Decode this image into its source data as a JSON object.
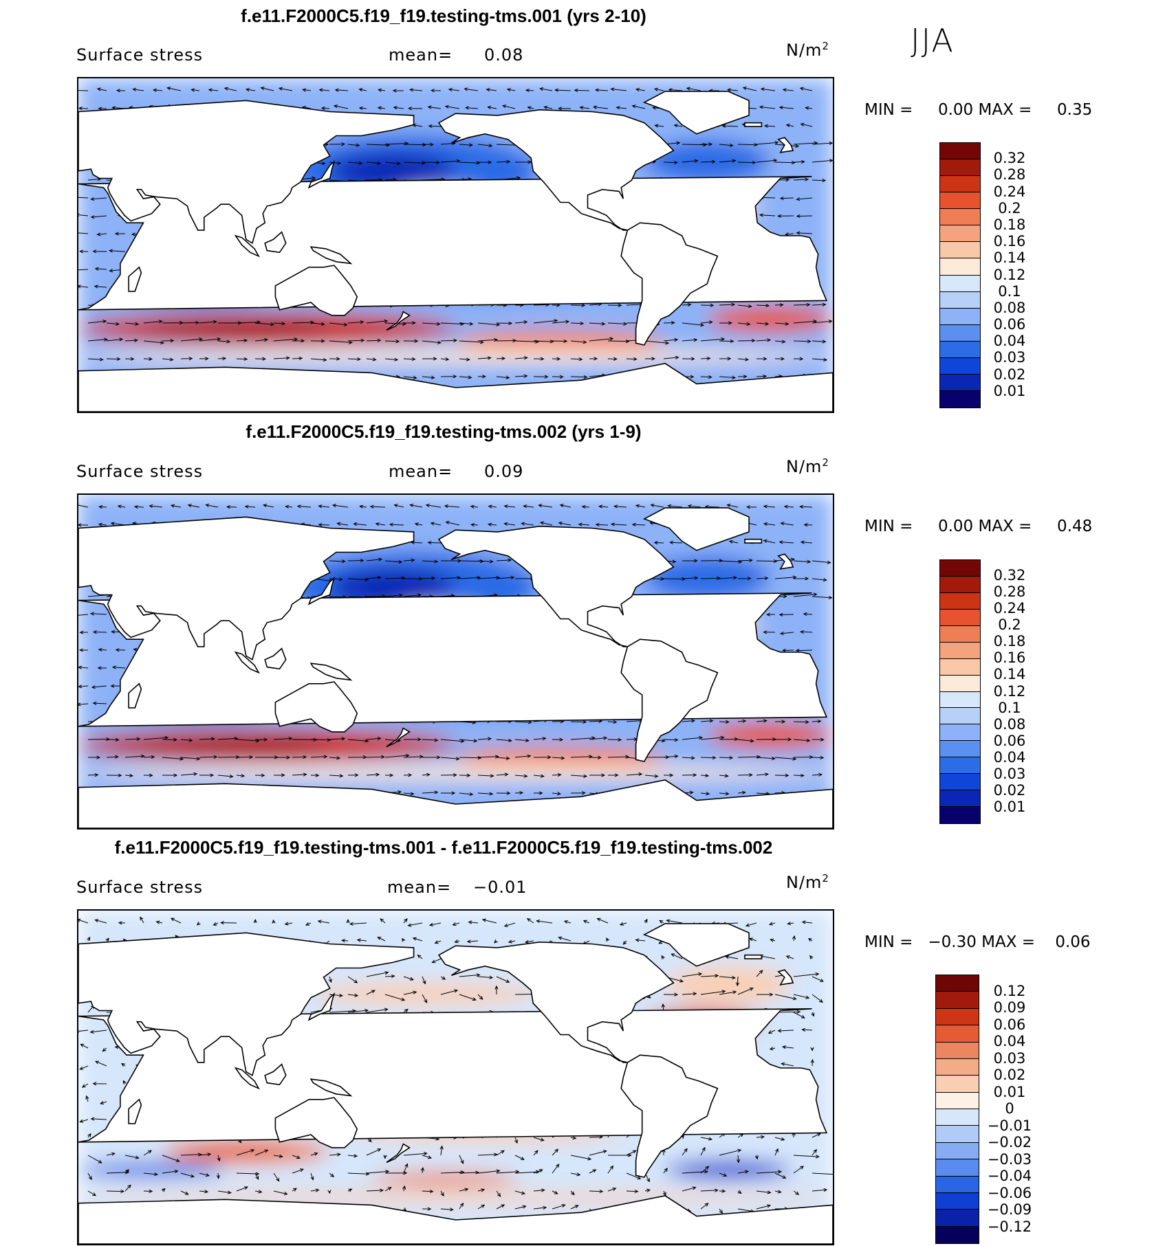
{
  "season": "JJA",
  "palette_abs": [
    "#08006e",
    "#0a26b5",
    "#1045d9",
    "#2c6ce6",
    "#5b8ff0",
    "#8db2f7",
    "#b7d0f8",
    "#d8e8fb",
    "#fdebd9",
    "#f8c8a8",
    "#f4a37e",
    "#ef7e55",
    "#e6532e",
    "#cc3415",
    "#a11b0d",
    "#730707"
  ],
  "palette_diff": [
    "#06005a",
    "#0a22a8",
    "#0f3fd3",
    "#2a66e3",
    "#5a8bee",
    "#88acf4",
    "#b1cbf7",
    "#d6e6fb",
    "#fdf0e4",
    "#f9cfb3",
    "#f3ab8a",
    "#ed8660",
    "#e45b34",
    "#cc3615",
    "#a21a0c",
    "#6e0606"
  ],
  "panels": [
    {
      "title": "f.e11.F2000C5.f19_f19.testing-tms.001 (yrs 2-10)",
      "variable": "Surface stress",
      "mean_label": "mean=",
      "mean_value": "0.08",
      "units": "N/m",
      "units_sup": "2",
      "min_label": "MIN =",
      "min_value": "0.00",
      "max_label": "MAX =",
      "max_value": "0.35",
      "levels": [
        "0.32",
        "0.28",
        "0.24",
        "0.2",
        "0.18",
        "0.16",
        "0.14",
        "0.12",
        "0.1",
        "0.08",
        "0.06",
        "0.04",
        "0.03",
        "0.02",
        "0.01"
      ],
      "kind": "abs"
    },
    {
      "title": "f.e11.F2000C5.f19_f19.testing-tms.002 (yrs 1-9)",
      "variable": "Surface stress",
      "mean_label": "mean=",
      "mean_value": "0.09",
      "units": "N/m",
      "units_sup": "2",
      "min_label": "MIN =",
      "min_value": "0.00",
      "max_label": "MAX =",
      "max_value": "0.48",
      "levels": [
        "0.32",
        "0.28",
        "0.24",
        "0.2",
        "0.18",
        "0.16",
        "0.14",
        "0.12",
        "0.1",
        "0.08",
        "0.06",
        "0.04",
        "0.03",
        "0.02",
        "0.01"
      ],
      "kind": "abs"
    },
    {
      "title": "f.e11.F2000C5.f19_f19.testing-tms.001 - f.e11.F2000C5.f19_f19.testing-tms.002",
      "variable": "Surface stress",
      "mean_label": "mean=",
      "mean_value": "−0.01",
      "units": "N/m",
      "units_sup": "2",
      "min_label": "MIN =",
      "min_value": "−0.30",
      "max_label": "MAX =",
      "max_value": "0.06",
      "levels": [
        "0.12",
        "0.09",
        "0.06",
        "0.04",
        "0.03",
        "0.02",
        "0.01",
        "0",
        "−0.01",
        "−0.02",
        "−0.03",
        "−0.04",
        "−0.06",
        "−0.09",
        "−0.12"
      ],
      "kind": "diff"
    }
  ]
}
